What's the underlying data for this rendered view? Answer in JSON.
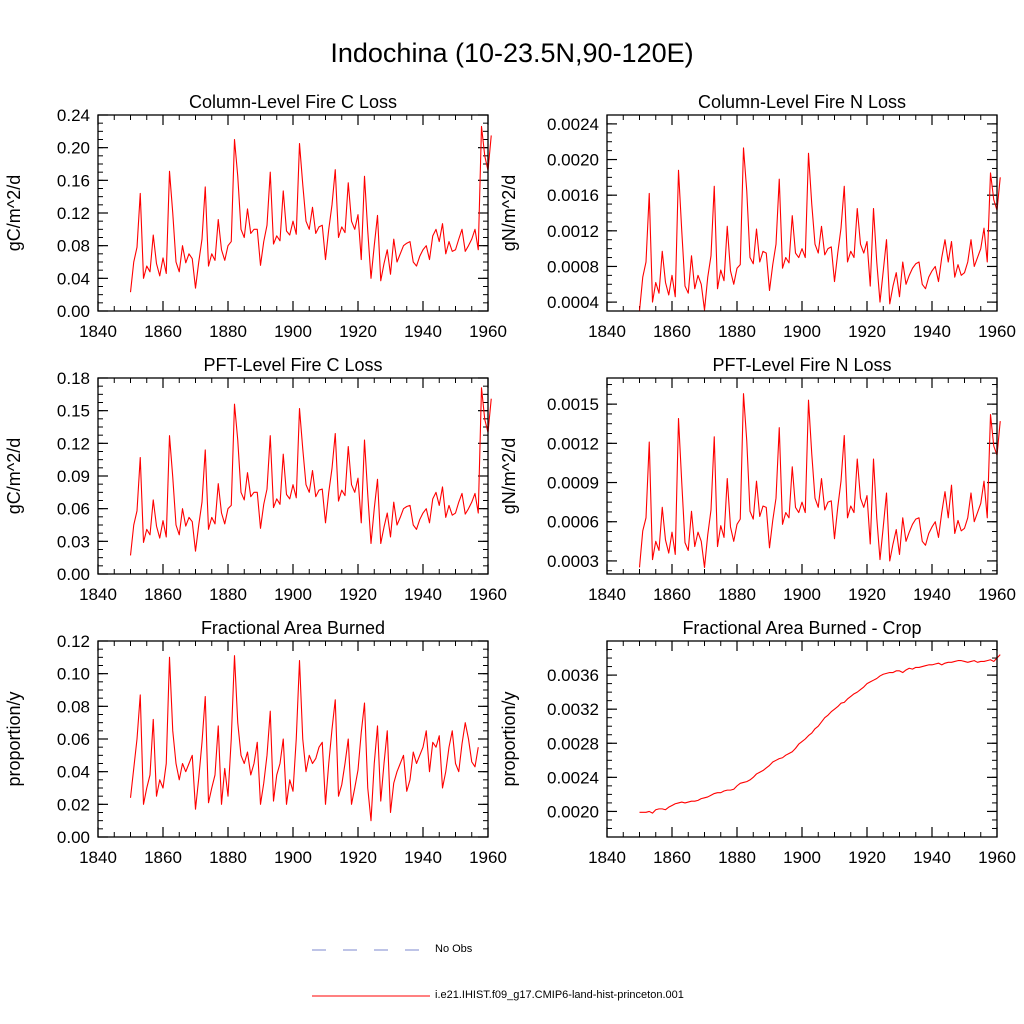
{
  "figure": {
    "title": "Indochina (10-23.5N,90-120E)"
  },
  "legend": [
    {
      "label": "No Obs",
      "color": "#7d8acf",
      "style": "dashed"
    },
    {
      "label": "i.e21.IHIST.f09_g17.CMIP6-land-hist-princeton.001",
      "color": "#ff0000",
      "style": "solid"
    }
  ],
  "chart_data": [
    {
      "type": "line",
      "title": "Column-Level Fire C Loss",
      "ylabel": "gC/m^2/d",
      "xlim": [
        1840,
        1960
      ],
      "ylim": [
        0.0,
        0.24
      ],
      "xticks": [
        1840,
        1860,
        1880,
        1900,
        1920,
        1940,
        1960
      ],
      "xtick_labels": [
        "1840",
        "1860",
        "1880",
        "1900",
        "1920",
        "1940",
        "1960"
      ],
      "yticks": [
        0.0,
        0.04,
        0.08,
        0.12,
        0.16,
        0.2,
        0.24
      ],
      "ytick_labels": [
        "0.00",
        "0.04",
        "0.08",
        "0.12",
        "0.16",
        "0.20",
        "0.24"
      ],
      "color": "#ff0000",
      "series": [
        {
          "x_start": 1850,
          "x_step": 1,
          "values": [
            0.023,
            0.06,
            0.078,
            0.144,
            0.04,
            0.055,
            0.048,
            0.093,
            0.058,
            0.043,
            0.065,
            0.046,
            0.171,
            0.12,
            0.06,
            0.048,
            0.08,
            0.059,
            0.07,
            0.064,
            0.028,
            0.06,
            0.088,
            0.152,
            0.055,
            0.07,
            0.062,
            0.112,
            0.075,
            0.062,
            0.08,
            0.085,
            0.21,
            0.165,
            0.1,
            0.09,
            0.125,
            0.095,
            0.1,
            0.1,
            0.056,
            0.085,
            0.105,
            0.17,
            0.082,
            0.092,
            0.086,
            0.147,
            0.098,
            0.093,
            0.11,
            0.094,
            0.205,
            0.155,
            0.11,
            0.1,
            0.127,
            0.095,
            0.103,
            0.105,
            0.063,
            0.1,
            0.13,
            0.173,
            0.09,
            0.103,
            0.096,
            0.157,
            0.11,
            0.1,
            0.118,
            0.063,
            0.165,
            0.098,
            0.04,
            0.08,
            0.117,
            0.037,
            0.058,
            0.075,
            0.045,
            0.088,
            0.06,
            0.07,
            0.08,
            0.083,
            0.085,
            0.06,
            0.055,
            0.067,
            0.075,
            0.08,
            0.063,
            0.092,
            0.1,
            0.085,
            0.107,
            0.07,
            0.085,
            0.073,
            0.075,
            0.088,
            0.1,
            0.073,
            0.08,
            0.088,
            0.1,
            0.075,
            0.226,
            0.19,
            0.172,
            0.215
          ]
        }
      ]
    },
    {
      "type": "line",
      "title": "Column-Level Fire N Loss",
      "ylabel": "gN/m^2/d",
      "xlim": [
        1840,
        1960
      ],
      "ylim": [
        0.0003,
        0.0025
      ],
      "xticks": [
        1840,
        1860,
        1880,
        1900,
        1920,
        1940,
        1960
      ],
      "xtick_labels": [
        "1840",
        "1860",
        "1880",
        "1900",
        "1920",
        "1940",
        "1960"
      ],
      "yticks": [
        0.0004,
        0.0008,
        0.0012,
        0.0016,
        0.002,
        0.0024
      ],
      "ytick_labels": [
        "0.0004",
        "0.0008",
        "0.0012",
        "0.0016",
        "0.0020",
        "0.0024"
      ],
      "color": "#ff0000",
      "series": [
        {
          "x_start": 1850,
          "x_step": 1,
          "values": [
            0.0003,
            0.00068,
            0.00085,
            0.00162,
            0.0004,
            0.00062,
            0.0005,
            0.00097,
            0.00062,
            0.00048,
            0.0007,
            0.00046,
            0.00188,
            0.0012,
            0.00058,
            0.0005,
            0.00092,
            0.00055,
            0.0007,
            0.0006,
            0.00031,
            0.00068,
            0.00092,
            0.0017,
            0.00055,
            0.00076,
            0.00064,
            0.00125,
            0.00075,
            0.0006,
            0.00078,
            0.00082,
            0.00213,
            0.00165,
            0.0009,
            0.00083,
            0.00122,
            0.00085,
            0.00097,
            0.00095,
            0.00053,
            0.00082,
            0.00105,
            0.00178,
            0.00078,
            0.0009,
            0.00084,
            0.00137,
            0.00095,
            0.0009,
            0.001,
            0.0009,
            0.00207,
            0.0015,
            0.00105,
            0.00095,
            0.00125,
            0.00093,
            0.001,
            0.00102,
            0.00063,
            0.00095,
            0.00123,
            0.0017,
            0.00085,
            0.00097,
            0.0009,
            0.00145,
            0.00105,
            0.00095,
            0.00108,
            0.00058,
            0.00145,
            0.00085,
            0.0004,
            0.00075,
            0.0011,
            0.00038,
            0.00058,
            0.00073,
            0.00046,
            0.00085,
            0.0006,
            0.0007,
            0.00078,
            0.00083,
            0.00085,
            0.0006,
            0.00055,
            0.00068,
            0.00075,
            0.0008,
            0.00063,
            0.0009,
            0.0011,
            0.00085,
            0.00108,
            0.00068,
            0.00082,
            0.0007,
            0.00073,
            0.00085,
            0.0011,
            0.0008,
            0.0009,
            0.001,
            0.00123,
            0.00085,
            0.00185,
            0.00155,
            0.00143,
            0.0018
          ]
        }
      ]
    },
    {
      "type": "line",
      "title": "PFT-Level Fire C Loss",
      "ylabel": "gC/m^2/d",
      "xlim": [
        1840,
        1960
      ],
      "ylim": [
        0.0,
        0.18
      ],
      "xticks": [
        1840,
        1860,
        1880,
        1900,
        1920,
        1940,
        1960
      ],
      "xtick_labels": [
        "1840",
        "1860",
        "1880",
        "1900",
        "1920",
        "1940",
        "1960"
      ],
      "yticks": [
        0.0,
        0.03,
        0.06,
        0.09,
        0.12,
        0.15,
        0.18
      ],
      "ytick_labels": [
        "0.00",
        "0.03",
        "0.06",
        "0.09",
        "0.12",
        "0.15",
        "0.18"
      ],
      "color": "#ff0000",
      "series": [
        {
          "x_start": 1850,
          "x_step": 1,
          "values": [
            0.017,
            0.045,
            0.058,
            0.107,
            0.029,
            0.041,
            0.036,
            0.068,
            0.044,
            0.033,
            0.049,
            0.034,
            0.127,
            0.089,
            0.045,
            0.036,
            0.06,
            0.044,
            0.052,
            0.048,
            0.021,
            0.045,
            0.066,
            0.114,
            0.041,
            0.052,
            0.046,
            0.083,
            0.056,
            0.046,
            0.06,
            0.063,
            0.156,
            0.123,
            0.075,
            0.068,
            0.093,
            0.071,
            0.075,
            0.075,
            0.042,
            0.064,
            0.078,
            0.127,
            0.061,
            0.069,
            0.064,
            0.11,
            0.073,
            0.069,
            0.082,
            0.07,
            0.152,
            0.115,
            0.082,
            0.075,
            0.095,
            0.071,
            0.077,
            0.078,
            0.047,
            0.075,
            0.097,
            0.129,
            0.067,
            0.077,
            0.072,
            0.117,
            0.082,
            0.075,
            0.088,
            0.047,
            0.123,
            0.073,
            0.028,
            0.06,
            0.087,
            0.028,
            0.043,
            0.056,
            0.034,
            0.066,
            0.045,
            0.052,
            0.06,
            0.062,
            0.063,
            0.045,
            0.041,
            0.05,
            0.056,
            0.06,
            0.047,
            0.069,
            0.075,
            0.063,
            0.08,
            0.052,
            0.063,
            0.054,
            0.056,
            0.066,
            0.074,
            0.055,
            0.06,
            0.066,
            0.074,
            0.056,
            0.171,
            0.142,
            0.13,
            0.161
          ]
        }
      ]
    },
    {
      "type": "line",
      "title": "PFT-Level Fire N Loss",
      "ylabel": "gN/m^2/d",
      "xlim": [
        1840,
        1960
      ],
      "ylim": [
        0.0002,
        0.0017
      ],
      "xticks": [
        1840,
        1860,
        1880,
        1900,
        1920,
        1940,
        1960
      ],
      "xtick_labels": [
        "1840",
        "1860",
        "1880",
        "1900",
        "1920",
        "1940",
        "1960"
      ],
      "yticks": [
        0.0003,
        0.0006,
        0.0009,
        0.0012,
        0.0015
      ],
      "ytick_labels": [
        "0.0003",
        "0.0006",
        "0.0009",
        "0.0012",
        "0.0015"
      ],
      "color": "#ff0000",
      "series": [
        {
          "x_start": 1850,
          "x_step": 1,
          "values": [
            0.00025,
            0.00053,
            0.00063,
            0.00121,
            0.00031,
            0.00045,
            0.00038,
            0.00071,
            0.00046,
            0.00036,
            0.00052,
            0.00035,
            0.00139,
            0.0009,
            0.00044,
            0.00038,
            0.00068,
            0.00041,
            0.00052,
            0.00045,
            0.00025,
            0.0005,
            0.00069,
            0.00125,
            0.00041,
            0.00057,
            0.00048,
            0.00093,
            0.00056,
            0.00045,
            0.00058,
            0.00062,
            0.00158,
            0.00122,
            0.00068,
            0.00062,
            0.00091,
            0.00064,
            0.00072,
            0.00071,
            0.0004,
            0.00061,
            0.00078,
            0.00132,
            0.00058,
            0.00067,
            0.00063,
            0.00102,
            0.00071,
            0.00067,
            0.00075,
            0.00067,
            0.00153,
            0.00112,
            0.00078,
            0.00071,
            0.00093,
            0.00069,
            0.00075,
            0.00076,
            0.00047,
            0.00071,
            0.00091,
            0.00126,
            0.00063,
            0.00072,
            0.00067,
            0.00108,
            0.00078,
            0.00071,
            0.0008,
            0.00043,
            0.00108,
            0.00063,
            0.00031,
            0.00056,
            0.00082,
            0.0003,
            0.00043,
            0.00054,
            0.00035,
            0.00063,
            0.00045,
            0.00052,
            0.00058,
            0.00062,
            0.00063,
            0.00045,
            0.00042,
            0.00051,
            0.00056,
            0.0006,
            0.00048,
            0.00067,
            0.00083,
            0.00063,
            0.00088,
            0.00051,
            0.00061,
            0.00053,
            0.00055,
            0.00063,
            0.00082,
            0.0006,
            0.00067,
            0.00074,
            0.00091,
            0.00063,
            0.00142,
            0.00118,
            0.00111,
            0.00137
          ]
        }
      ]
    },
    {
      "type": "line",
      "title": "Fractional Area Burned",
      "ylabel": "proportion/y",
      "xlim": [
        1840,
        1960
      ],
      "ylim": [
        0.0,
        0.12
      ],
      "xticks": [
        1840,
        1860,
        1880,
        1900,
        1920,
        1940,
        1960
      ],
      "xtick_labels": [
        "1840",
        "1860",
        "1880",
        "1900",
        "1920",
        "1940",
        "1960"
      ],
      "yticks": [
        0.0,
        0.02,
        0.04,
        0.06,
        0.08,
        0.1,
        0.12
      ],
      "ytick_labels": [
        "0.00",
        "0.02",
        "0.04",
        "0.06",
        "0.08",
        "0.10",
        "0.12"
      ],
      "color": "#ff0000",
      "series": [
        {
          "x_start": 1850,
          "x_step": 1,
          "values": [
            0.024,
            0.042,
            0.06,
            0.087,
            0.02,
            0.03,
            0.038,
            0.072,
            0.025,
            0.035,
            0.03,
            0.045,
            0.11,
            0.065,
            0.045,
            0.035,
            0.045,
            0.04,
            0.045,
            0.05,
            0.017,
            0.036,
            0.058,
            0.086,
            0.021,
            0.03,
            0.038,
            0.068,
            0.02,
            0.042,
            0.025,
            0.06,
            0.111,
            0.07,
            0.05,
            0.045,
            0.052,
            0.038,
            0.045,
            0.058,
            0.02,
            0.033,
            0.05,
            0.077,
            0.022,
            0.038,
            0.045,
            0.06,
            0.02,
            0.035,
            0.028,
            0.06,
            0.108,
            0.06,
            0.04,
            0.05,
            0.045,
            0.048,
            0.055,
            0.058,
            0.02,
            0.045,
            0.066,
            0.084,
            0.025,
            0.032,
            0.045,
            0.06,
            0.02,
            0.03,
            0.041,
            0.064,
            0.082,
            0.03,
            0.01,
            0.045,
            0.068,
            0.022,
            0.045,
            0.065,
            0.015,
            0.033,
            0.04,
            0.045,
            0.05,
            0.028,
            0.035,
            0.052,
            0.045,
            0.05,
            0.055,
            0.065,
            0.04,
            0.058,
            0.055,
            0.062,
            0.03,
            0.04,
            0.055,
            0.065,
            0.045,
            0.04,
            0.057,
            0.07,
            0.06,
            0.046,
            0.043,
            0.055
          ]
        }
      ]
    },
    {
      "type": "line",
      "title": "Fractional Area Burned - Crop",
      "ylabel": "proportion/y",
      "xlim": [
        1840,
        1960
      ],
      "ylim": [
        0.0017,
        0.004
      ],
      "xticks": [
        1840,
        1860,
        1880,
        1900,
        1920,
        1940,
        1960
      ],
      "xtick_labels": [
        "1840",
        "1860",
        "1880",
        "1900",
        "1920",
        "1940",
        "1960"
      ],
      "yticks": [
        0.002,
        0.0024,
        0.0028,
        0.0032,
        0.0036
      ],
      "ytick_labels": [
        "0.0020",
        "0.0024",
        "0.0028",
        "0.0032",
        "0.0036"
      ],
      "color": "#ff0000",
      "series": [
        {
          "x_start": 1850,
          "x_step": 1,
          "values": [
            0.00199,
            0.00199,
            0.00199,
            0.002,
            0.00198,
            0.00202,
            0.00203,
            0.00203,
            0.00202,
            0.00205,
            0.00207,
            0.00209,
            0.0021,
            0.00211,
            0.0021,
            0.00211,
            0.00212,
            0.00212,
            0.00213,
            0.00215,
            0.00216,
            0.00217,
            0.00219,
            0.00221,
            0.00222,
            0.00222,
            0.00224,
            0.00225,
            0.00225,
            0.00226,
            0.0023,
            0.00233,
            0.00234,
            0.00235,
            0.00237,
            0.0024,
            0.00244,
            0.00246,
            0.00248,
            0.00251,
            0.00254,
            0.00258,
            0.0026,
            0.00262,
            0.00263,
            0.00266,
            0.00268,
            0.0027,
            0.00274,
            0.00279,
            0.00282,
            0.00285,
            0.00289,
            0.00292,
            0.00297,
            0.003,
            0.00305,
            0.0031,
            0.00313,
            0.00317,
            0.0032,
            0.00323,
            0.00327,
            0.00328,
            0.00332,
            0.00335,
            0.00338,
            0.0034,
            0.00343,
            0.00346,
            0.0035,
            0.00352,
            0.00354,
            0.00356,
            0.00359,
            0.00361,
            0.00362,
            0.00363,
            0.00363,
            0.00365,
            0.00365,
            0.00363,
            0.00366,
            0.00368,
            0.00367,
            0.00369,
            0.00369,
            0.0037,
            0.00371,
            0.00372,
            0.00372,
            0.00373,
            0.00374,
            0.00372,
            0.00374,
            0.00375,
            0.00375,
            0.00376,
            0.00377,
            0.00377,
            0.00376,
            0.00375,
            0.00376,
            0.00377,
            0.00375,
            0.00376,
            0.00376,
            0.00377,
            0.00378,
            0.00376,
            0.0038,
            0.00384
          ]
        }
      ]
    }
  ]
}
